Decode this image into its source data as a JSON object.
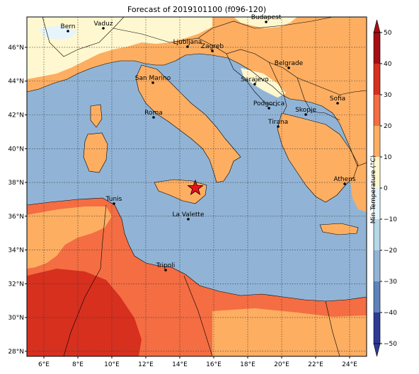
{
  "title": "Forecast of 2019101100 (f096-120)",
  "map": {
    "lon_range": [
      5,
      25
    ],
    "lat_range": [
      27.7,
      47.8
    ],
    "lon_ticks": [
      "6°E",
      "8°E",
      "10°E",
      "12°E",
      "14°E",
      "16°E",
      "18°E",
      "20°E",
      "22°E",
      "24°E"
    ],
    "lat_ticks": [
      "28°N",
      "30°N",
      "32°N",
      "34°N",
      "36°N",
      "38°N",
      "40°N",
      "42°N",
      "44°N",
      "46°N"
    ],
    "marker": {
      "symbol": "star",
      "color": "#e8141c"
    },
    "cities": [
      {
        "name": "Bern"
      },
      {
        "name": "Vaduz"
      },
      {
        "name": "Budapest"
      },
      {
        "name": "Ljubljana"
      },
      {
        "name": "Zagreb"
      },
      {
        "name": "San Marino"
      },
      {
        "name": "Belgrade"
      },
      {
        "name": "Sarajevo"
      },
      {
        "name": "Sofia"
      },
      {
        "name": "Podgorica"
      },
      {
        "name": "Skopje"
      },
      {
        "name": "Roma"
      },
      {
        "name": "Tirana"
      },
      {
        "name": "Athens"
      },
      {
        "name": "Tunis"
      },
      {
        "name": "La Valette"
      },
      {
        "name": "Tripoli"
      }
    ]
  },
  "colorbar": {
    "label": "Min Temperature (°C)",
    "ticks": [
      "50",
      "40",
      "30",
      "20",
      "10",
      "0",
      "−10",
      "−20",
      "−30",
      "−40",
      "−50"
    ],
    "colors": {
      "t40_50": "#a50f15",
      "t30_40": "#d7301f",
      "t20_30": "#f46d43",
      "t10_20": "#fdae61",
      "t0_10": "#fef7cf",
      "tm10_0": "#e6f5fb",
      "tm20_m10": "#b5d7e8",
      "tm30_m20": "#91b4d6",
      "tm40_m30": "#5e82ba",
      "tm50_m40": "#2d3b94"
    }
  }
}
